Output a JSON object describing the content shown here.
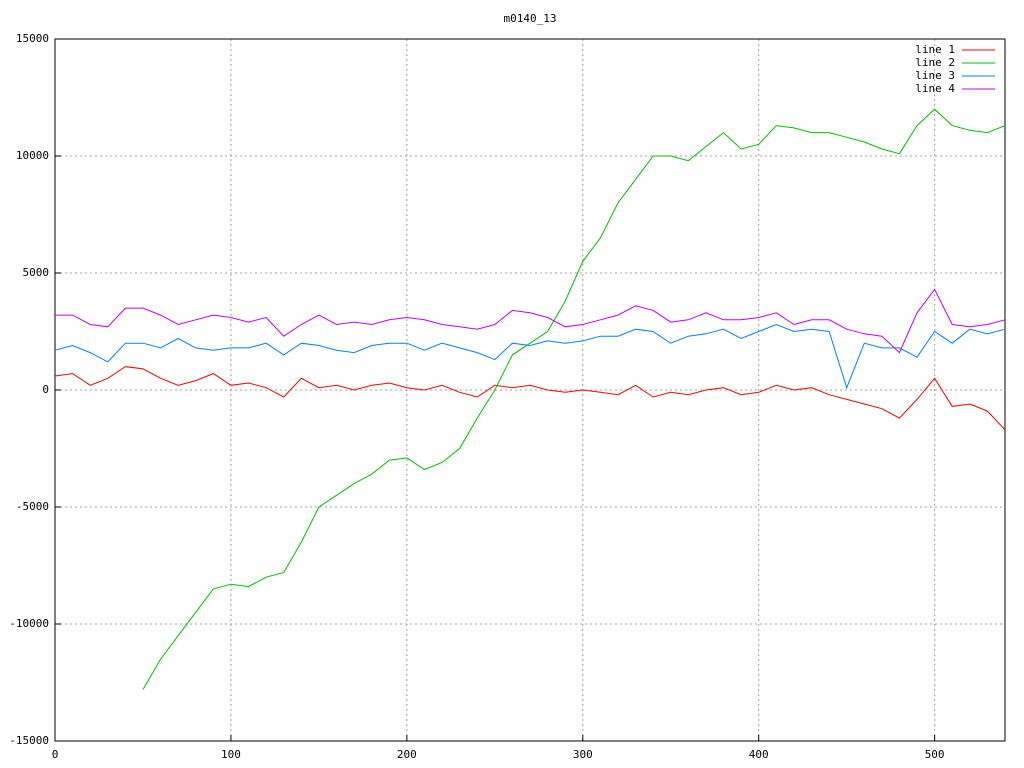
{
  "chart_data": {
    "type": "line",
    "title": "m0140_13",
    "x": [
      0,
      10,
      20,
      30,
      40,
      50,
      60,
      70,
      80,
      90,
      100,
      110,
      120,
      130,
      140,
      150,
      160,
      170,
      180,
      190,
      200,
      210,
      220,
      230,
      240,
      250,
      260,
      270,
      280,
      290,
      300,
      310,
      320,
      330,
      340,
      350,
      360,
      370,
      380,
      390,
      400,
      410,
      420,
      430,
      440,
      450,
      460,
      470,
      480,
      490,
      500,
      510,
      520,
      530,
      540
    ],
    "series": [
      {
        "name": "line 1",
        "color": "#ff0000",
        "values": [
          600,
          700,
          200,
          500,
          1000,
          900,
          500,
          200,
          400,
          700,
          200,
          300,
          100,
          -300,
          500,
          100,
          200,
          0,
          200,
          300,
          100,
          0,
          200,
          -100,
          -300,
          200,
          100,
          200,
          0,
          -100,
          0,
          -100,
          -200,
          200,
          -300,
          -100,
          -200,
          0,
          100,
          -200,
          -100,
          200,
          0,
          100,
          -200,
          -400,
          -600,
          -800,
          -1200,
          -400,
          500,
          -700,
          -600,
          -900,
          -1700
        ]
      },
      {
        "name": "line 2",
        "color": "#00c000",
        "values": [
          null,
          null,
          null,
          null,
          null,
          -12800,
          -11500,
          -10500,
          -9500,
          -8500,
          -8300,
          -8400,
          -8000,
          -7800,
          -6500,
          -5000,
          -4500,
          -4000,
          -3600,
          -3000,
          -2900,
          -3400,
          -3100,
          -2500,
          -1200,
          0,
          1500,
          2000,
          2500,
          3800,
          5500,
          6500,
          8000,
          9000,
          10000,
          10000,
          9800,
          10400,
          11000,
          10300,
          10500,
          11300,
          11200,
          11000,
          11000,
          10800,
          10600,
          10300,
          10100,
          11300,
          12000,
          11300,
          11100,
          11000,
          11300
        ]
      },
      {
        "name": "line 3",
        "color": "#0080ff",
        "values": [
          1700,
          1900,
          1600,
          1200,
          2000,
          2000,
          1800,
          2200,
          1800,
          1700,
          1800,
          1800,
          2000,
          1500,
          2000,
          1900,
          1700,
          1600,
          1900,
          2000,
          2000,
          1700,
          2000,
          1800,
          1600,
          1300,
          2000,
          1900,
          2100,
          2000,
          2100,
          2300,
          2300,
          2600,
          2500,
          2000,
          2300,
          2400,
          2600,
          2200,
          2500,
          2800,
          2500,
          2600,
          2500,
          100,
          2000,
          1800,
          1800,
          1400,
          2500,
          2000,
          2600,
          2400,
          2600
        ]
      },
      {
        "name": "line 4",
        "color": "#c000ff",
        "values": [
          3200,
          3200,
          2800,
          2700,
          3500,
          3500,
          3200,
          2800,
          3000,
          3200,
          3100,
          2900,
          3100,
          2300,
          2800,
          3200,
          2800,
          2900,
          2800,
          3000,
          3100,
          3000,
          2800,
          2700,
          2600,
          2800,
          3400,
          3300,
          3100,
          2700,
          2800,
          3000,
          3200,
          3600,
          3400,
          2900,
          3000,
          3300,
          3000,
          3000,
          3100,
          3300,
          2800,
          3000,
          3000,
          2600,
          2400,
          2300,
          1600,
          3300,
          4300,
          2800,
          2700,
          2800,
          3000
        ]
      }
    ],
    "xlim": [
      0,
      540
    ],
    "xticks": [
      0,
      100,
      200,
      300,
      400,
      500
    ],
    "ylim": [
      -15000,
      15000
    ],
    "yticks": [
      -15000,
      -10000,
      -5000,
      0,
      5000,
      10000,
      15000
    ],
    "grid": true,
    "legend": "top-right"
  }
}
